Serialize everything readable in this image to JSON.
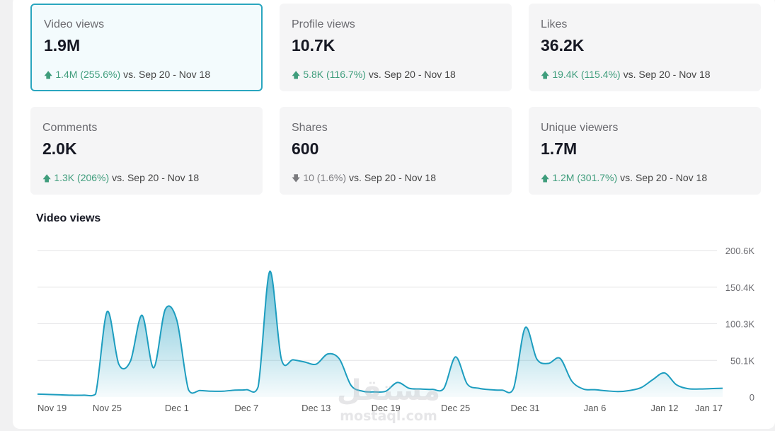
{
  "cards": [
    {
      "label": "Video views",
      "value": "1.9M",
      "direction": "up",
      "change": "1.4M (255.6%)",
      "vs": "vs.",
      "period": "Sep 20 - Nov 18"
    },
    {
      "label": "Profile views",
      "value": "10.7K",
      "direction": "up",
      "change": "5.8K (116.7%)",
      "vs": "vs.",
      "period": "Sep 20 - Nov 18"
    },
    {
      "label": "Likes",
      "value": "36.2K",
      "direction": "up",
      "change": "19.4K (115.4%)",
      "vs": "vs.",
      "period": "Sep 20 - Nov 18"
    },
    {
      "label": "Comments",
      "value": "2.0K",
      "direction": "up",
      "change": "1.3K (206%)",
      "vs": "vs.",
      "period": "Sep 20 - Nov 18"
    },
    {
      "label": "Shares",
      "value": "600",
      "direction": "down",
      "change": "10 (1.6%)",
      "vs": "vs.",
      "period": "Sep 20 - Nov 18"
    },
    {
      "label": "Unique viewers",
      "value": "1.7M",
      "direction": "up",
      "change": "1.2M (301.7%)",
      "vs": "vs.",
      "period": "Sep 20 - Nov 18"
    }
  ],
  "icons": {
    "up": "arrow-up-icon",
    "down": "arrow-down-icon"
  },
  "colors": {
    "accent": "#2aa6bf",
    "up": "#3f9d7c",
    "down": "#7a7a7e"
  },
  "watermark": {
    "arabic": "مستقل",
    "latin": "mostaql.com"
  },
  "chart_data": {
    "type": "area",
    "title": "Video views",
    "xlabel": "",
    "ylabel": "",
    "y_ticks": [
      "0",
      "50.1K",
      "100.3K",
      "150.4K",
      "200.6K"
    ],
    "ylim": [
      0,
      200600
    ],
    "grid": true,
    "x_ticks": [
      "Nov 19",
      "Nov 25",
      "Dec 1",
      "Dec 7",
      "Dec 13",
      "Dec 19",
      "Dec 25",
      "Dec 31",
      "Jan 6",
      "Jan 12",
      "Jan 17"
    ],
    "x": [
      "Nov 19",
      "Nov 20",
      "Nov 21",
      "Nov 22",
      "Nov 23",
      "Nov 24",
      "Nov 25",
      "Nov 26",
      "Nov 27",
      "Nov 28",
      "Nov 29",
      "Nov 30",
      "Dec 1",
      "Dec 2",
      "Dec 3",
      "Dec 4",
      "Dec 5",
      "Dec 6",
      "Dec 7",
      "Dec 8",
      "Dec 9",
      "Dec 10",
      "Dec 11",
      "Dec 12",
      "Dec 13",
      "Dec 14",
      "Dec 15",
      "Dec 16",
      "Dec 17",
      "Dec 18",
      "Dec 19",
      "Dec 20",
      "Dec 21",
      "Dec 22",
      "Dec 23",
      "Dec 24",
      "Dec 25",
      "Dec 26",
      "Dec 27",
      "Dec 28",
      "Dec 29",
      "Dec 30",
      "Dec 31",
      "Jan 1",
      "Jan 2",
      "Jan 3",
      "Jan 4",
      "Jan 5",
      "Jan 6",
      "Jan 7",
      "Jan 8",
      "Jan 9",
      "Jan 10",
      "Jan 11",
      "Jan 12",
      "Jan 13",
      "Jan 14",
      "Jan 15",
      "Jan 16",
      "Jan 17"
    ],
    "series": [
      {
        "values": [
          4000,
          3500,
          3000,
          2500,
          2500,
          4000,
          117000,
          45000,
          49000,
          112000,
          40000,
          120000,
          105000,
          10000,
          9000,
          8000,
          8000,
          9500,
          10000,
          14000,
          172000,
          52000,
          51000,
          48000,
          45000,
          59000,
          52000,
          16000,
          8000,
          7000,
          8000,
          20000,
          12000,
          11000,
          10500,
          12000,
          55000,
          18000,
          12000,
          10000,
          9500,
          12000,
          95000,
          52000,
          46000,
          53000,
          22000,
          11000,
          10000,
          8500,
          7500,
          9000,
          13000,
          24000,
          33000,
          17000,
          11500,
          11000,
          11500,
          12000
        ]
      }
    ]
  }
}
